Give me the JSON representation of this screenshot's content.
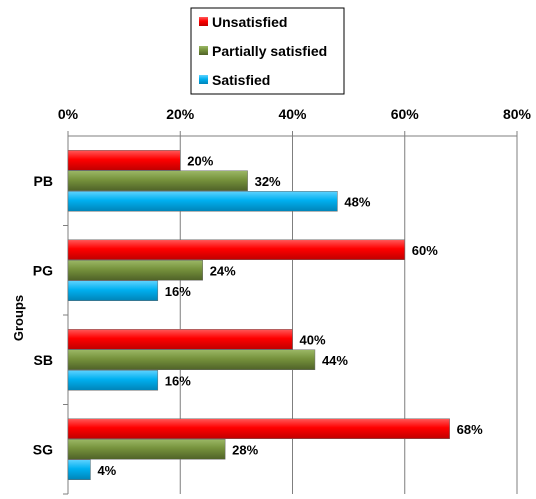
{
  "chart_data": {
    "type": "bar",
    "orientation": "horizontal",
    "categories": [
      "PB",
      "PG",
      "SB",
      "SG"
    ],
    "series": [
      {
        "name": "Unsatisfied",
        "color": "#ff0000",
        "values": [
          20,
          60,
          40,
          68
        ]
      },
      {
        "name": "Partially satisfied",
        "color": "#76923c",
        "values": [
          32,
          24,
          44,
          28
        ]
      },
      {
        "name": "Satisfied",
        "color": "#00b0f0",
        "values": [
          48,
          16,
          16,
          4
        ]
      }
    ],
    "value_format": "percent",
    "xlim": [
      0,
      80
    ],
    "x_ticks": [
      0,
      20,
      40,
      60,
      80
    ],
    "x_tick_labels": [
      "0%",
      "20%",
      "40%",
      "60%",
      "80%"
    ],
    "x_axis_position": "top",
    "ylabel": "Groups",
    "xlabel": "",
    "title": "",
    "grid": true,
    "legend_position": "top"
  }
}
